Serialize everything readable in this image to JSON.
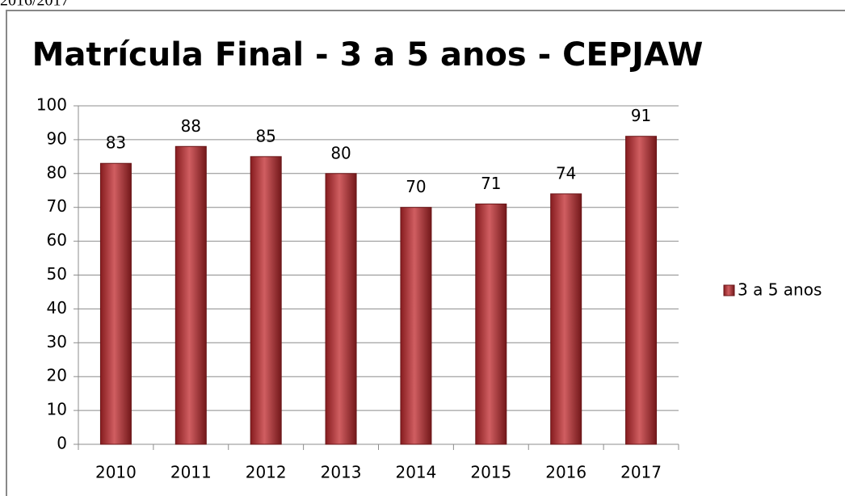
{
  "caption": "2016/2017",
  "chart_data": {
    "type": "bar",
    "title": "Matrícula Final - 3 a 5 anos - CEPJAW",
    "categories": [
      "2010",
      "2011",
      "2012",
      "2013",
      "2014",
      "2015",
      "2016",
      "2017"
    ],
    "series": [
      {
        "name": "3 a 5 anos",
        "color": "#c0282c",
        "values": [
          83,
          88,
          85,
          80,
          70,
          71,
          74,
          91
        ]
      }
    ],
    "ylim": [
      0,
      100
    ],
    "yticks": [
      0,
      10,
      20,
      30,
      40,
      50,
      60,
      70,
      80,
      90,
      100
    ],
    "grid": true,
    "legend": "right"
  }
}
